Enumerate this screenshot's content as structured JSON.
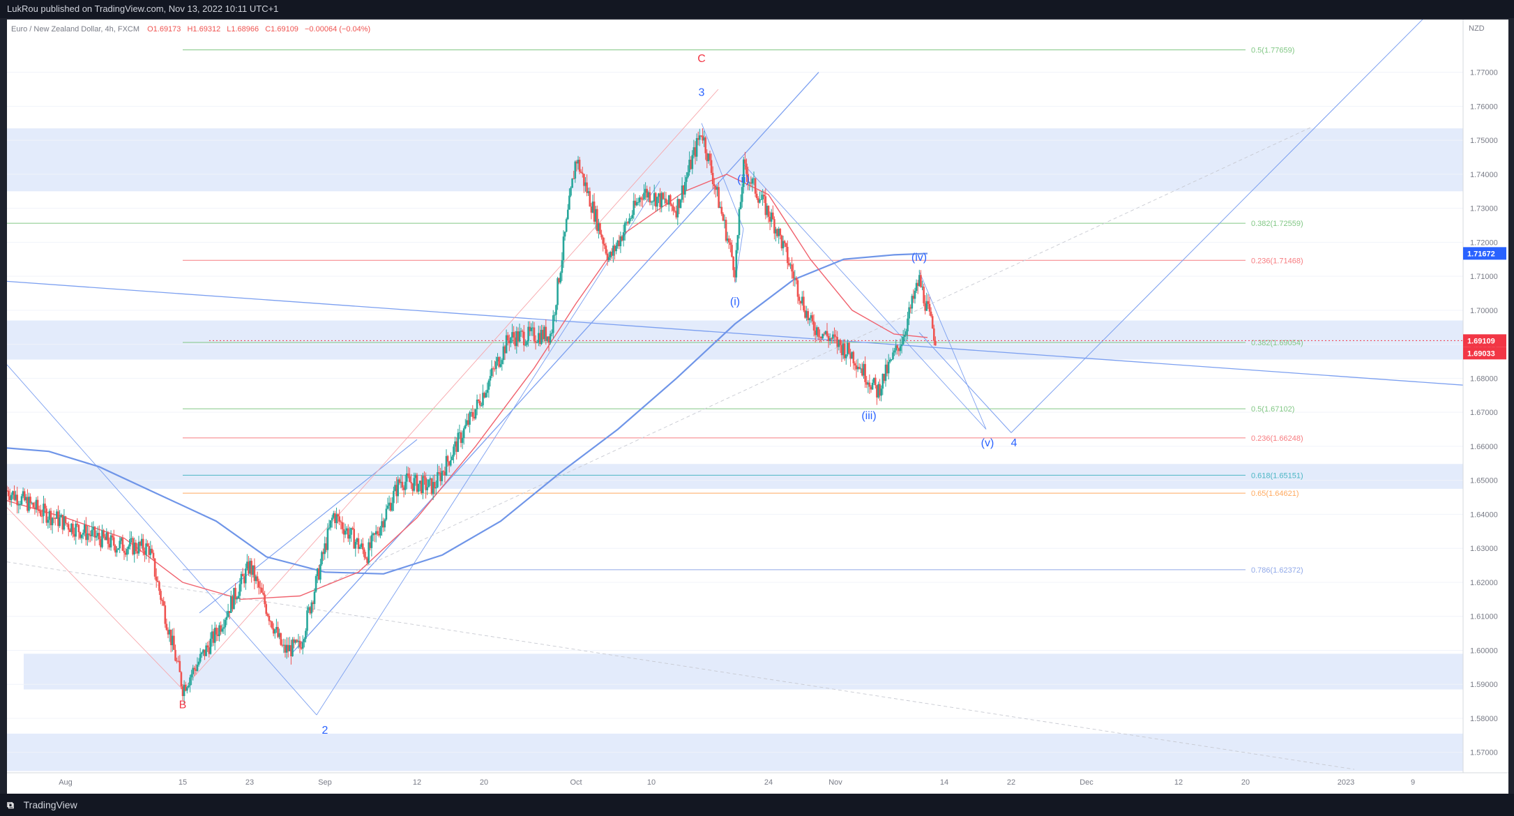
{
  "header": {
    "published_text": "LukRou published on TradingView.com, Nov 13, 2022 10:11 UTC+1"
  },
  "symbol": {
    "name": "Euro / New Zealand Dollar, 4h, FXCM",
    "open": "O1.69173",
    "high": "H1.69312",
    "low": "L1.68966",
    "close": "C1.69109",
    "change": "−0.00064 (−0.04%)"
  },
  "footer": {
    "brand": "TradingView",
    "logo_icon": "tradingview-logo-icon"
  },
  "colors": {
    "bull": "#26a69a",
    "bear": "#ef5350",
    "wave_blue": "#2962ff",
    "wave_red": "#f23645",
    "zone_fill": "#e3ebfb",
    "ema_red": "#f0616d",
    "ma_blue": "#6f95e8"
  },
  "chart_data": {
    "type": "candlestick",
    "currency": "NZD",
    "ylim": [
      1.564,
      1.7855
    ],
    "y_ticks": [
      "1.77000",
      "1.76000",
      "1.75000",
      "1.74000",
      "1.73000",
      "1.72000",
      "1.71000",
      "1.70000",
      "1.69000",
      "1.68000",
      "1.67000",
      "1.66000",
      "1.65000",
      "1.64000",
      "1.63000",
      "1.62000",
      "1.61000",
      "1.60000",
      "1.59000",
      "1.58000",
      "1.57000"
    ],
    "x_ticks": [
      "Aug",
      "15",
      "23",
      "Sep",
      "12",
      "20",
      "Oct",
      "10",
      "24",
      "Nov",
      "14",
      "22",
      "Dec",
      "12",
      "20",
      "2023",
      "9"
    ],
    "x_range": [
      "2022-07-25",
      "2023-01-15"
    ],
    "price_badges": [
      {
        "label": "1.71672",
        "value": 1.71672,
        "color": "#2962ff"
      },
      {
        "label": "1.69109",
        "value": 1.69109,
        "color": "#f23645"
      },
      {
        "label": "1.69033",
        "value": 1.69033,
        "color": "#f23645"
      }
    ],
    "wave_labels": [
      {
        "text": "C",
        "date": "2022-10-16",
        "price": 1.773,
        "color": "red"
      },
      {
        "text": "3",
        "date": "2022-10-16",
        "price": 1.763,
        "color": "blue"
      },
      {
        "text": "B",
        "date": "2022-08-15",
        "price": 1.583,
        "color": "red"
      },
      {
        "text": "2",
        "date": "2022-09-01",
        "price": 1.5755,
        "color": "blue"
      },
      {
        "text": "(ii)",
        "date": "2022-10-21",
        "price": 1.7375,
        "color": "blue"
      },
      {
        "text": "(i)",
        "date": "2022-10-20",
        "price": 1.7015,
        "color": "blue"
      },
      {
        "text": "(iii)",
        "date": "2022-11-05",
        "price": 1.668,
        "color": "blue"
      },
      {
        "text": "(iv)",
        "date": "2022-11-11",
        "price": 1.7145,
        "color": "blue"
      },
      {
        "text": "(v)",
        "date": "2022-11-20",
        "price": 1.66,
        "color": "blue"
      },
      {
        "text": "4",
        "date": "2022-11-22",
        "price": 1.66,
        "color": "blue"
      }
    ],
    "fib_levels": [
      {
        "label": "0.5(1.77659)",
        "value": 1.77659,
        "color": "#81c784",
        "from": "2022-08-15"
      },
      {
        "label": "0.382(1.72559)",
        "value": 1.72559,
        "color": "#81c784",
        "from": "2022-07-25"
      },
      {
        "label": "0.236(1.71468)",
        "value": 1.71468,
        "color": "#f77c80",
        "from": "2022-08-15"
      },
      {
        "label": "0.382(1.69054)",
        "value": 1.69054,
        "color": "#81c784",
        "from": "2022-08-15"
      },
      {
        "label": "0.5(1.67102)",
        "value": 1.67102,
        "color": "#81c784",
        "from": "2022-08-15"
      },
      {
        "label": "0.236(1.66248)",
        "value": 1.66248,
        "color": "#f77c80",
        "from": "2022-08-15"
      },
      {
        "label": "0.618(1.65151)",
        "value": 1.65151,
        "color": "#4bb6c4",
        "from": "2022-08-15"
      },
      {
        "label": "0.65(1.64621)",
        "value": 1.64621,
        "color": "#ffa95e",
        "from": "2022-08-15"
      },
      {
        "label": "0.786(1.62372)",
        "value": 1.62372,
        "color": "#90a8e8",
        "from": "2022-08-15"
      }
    ],
    "zones": [
      {
        "low": 1.735,
        "high": 1.7535
      },
      {
        "low": 1.6855,
        "high": 1.697
      },
      {
        "low": 1.6475,
        "high": 1.6548
      },
      {
        "low": 1.5885,
        "high": 1.599,
        "from": "2022-07-27"
      },
      {
        "low": 1.5645,
        "high": 1.5755
      }
    ],
    "trendlines": [
      {
        "color": "blue",
        "width": 1.3,
        "points": [
          [
            "2022-07-25",
            1.7085
          ],
          [
            "2023-01-15",
            1.678
          ]
        ]
      },
      {
        "color": "blue",
        "width": 1.3,
        "points": [
          [
            "2022-08-28",
            1.599
          ],
          [
            "2022-10-30",
            1.77
          ]
        ]
      },
      {
        "color": "blue",
        "width": 1.1,
        "points": [
          [
            "2022-08-17",
            1.611
          ],
          [
            "2022-09-12",
            1.662
          ]
        ]
      },
      {
        "color": "blue",
        "width": 0.9,
        "points": [
          [
            "2022-08-31",
            1.581
          ],
          [
            "2022-10-11",
            1.738
          ]
        ]
      },
      {
        "color": "blue",
        "width": 0.9,
        "points": [
          [
            "2022-07-25",
            1.684
          ],
          [
            "2022-08-31",
            1.581
          ]
        ]
      },
      {
        "color": "red",
        "width": 0.9,
        "points": [
          [
            "2022-07-25",
            1.642
          ],
          [
            "2022-08-15",
            1.5885
          ]
        ]
      },
      {
        "color": "red",
        "width": 0.9,
        "points": [
          [
            "2022-08-15",
            1.5885
          ],
          [
            "2022-10-18",
            1.765
          ]
        ]
      },
      {
        "color": "blue",
        "width": 0.9,
        "points": [
          [
            "2022-10-16",
            1.755
          ],
          [
            "2022-10-21",
            1.724
          ],
          [
            "2022-10-20",
            1.708
          ]
        ]
      },
      {
        "color": "blue",
        "width": 0.9,
        "points": [
          [
            "2022-10-21",
            1.743
          ],
          [
            "2022-11-19",
            1.665
          ]
        ]
      },
      {
        "color": "blue",
        "width": 0.9,
        "points": [
          [
            "2022-11-11",
            1.7115
          ],
          [
            "2022-11-19",
            1.665
          ]
        ]
      },
      {
        "color": "blue",
        "width": 1.0,
        "points": [
          [
            "2022-11-22",
            1.664
          ],
          [
            "2023-01-15",
            1.7975
          ]
        ]
      },
      {
        "color": "blue",
        "width": 1.0,
        "points": [
          [
            "2022-11-11",
            1.6935
          ],
          [
            "2022-11-22",
            1.664
          ]
        ]
      },
      {
        "color": "grey-dash",
        "width": 0.9,
        "points": [
          [
            "2022-07-25",
            1.626
          ],
          [
            "2023-01-02",
            1.565
          ]
        ]
      },
      {
        "color": "grey-dash",
        "width": 0.9,
        "points": [
          [
            "2022-08-31",
            1.618
          ],
          [
            "2022-12-28",
            1.754
          ]
        ]
      }
    ],
    "series": [
      {
        "name": "",
        "kind": "ma200",
        "points": [
          [
            "2022-07-25",
            1.6595
          ],
          [
            "2022-07-30",
            1.6585
          ],
          [
            "2022-08-05",
            1.654
          ],
          [
            "2022-08-12",
            1.646
          ],
          [
            "2022-08-19",
            1.638
          ],
          [
            "2022-08-25",
            1.6275
          ],
          [
            "2022-09-01",
            1.623
          ],
          [
            "2022-09-08",
            1.6225
          ],
          [
            "2022-09-15",
            1.628
          ],
          [
            "2022-09-22",
            1.638
          ],
          [
            "2022-09-29",
            1.652
          ],
          [
            "2022-10-06",
            1.665
          ],
          [
            "2022-10-13",
            1.68
          ],
          [
            "2022-10-20",
            1.696
          ],
          [
            "2022-10-27",
            1.709
          ],
          [
            "2022-11-02",
            1.715
          ],
          [
            "2022-11-08",
            1.7163
          ],
          [
            "2022-11-12",
            1.7167
          ]
        ]
      },
      {
        "name": "",
        "kind": "ema",
        "points": [
          [
            "2022-07-25",
            1.644
          ],
          [
            "2022-08-01",
            1.639
          ],
          [
            "2022-08-08",
            1.633
          ],
          [
            "2022-08-15",
            1.62
          ],
          [
            "2022-08-22",
            1.615
          ],
          [
            "2022-08-29",
            1.616
          ],
          [
            "2022-09-05",
            1.623
          ],
          [
            "2022-09-12",
            1.639
          ],
          [
            "2022-09-19",
            1.66
          ],
          [
            "2022-09-26",
            1.683
          ],
          [
            "2022-10-01",
            1.702
          ],
          [
            "2022-10-07",
            1.723
          ],
          [
            "2022-10-14",
            1.735
          ],
          [
            "2022-10-19",
            1.74
          ],
          [
            "2022-10-24",
            1.734
          ],
          [
            "2022-10-29",
            1.715
          ],
          [
            "2022-11-03",
            1.7
          ],
          [
            "2022-11-08",
            1.693
          ],
          [
            "2022-11-12",
            1.692
          ]
        ]
      },
      {
        "name": "",
        "kind": "price",
        "points": [
          [
            "2022-07-25",
            1.647
          ],
          [
            "2022-07-29",
            1.641
          ],
          [
            "2022-08-03",
            1.635
          ],
          [
            "2022-08-07",
            1.631
          ],
          [
            "2022-08-11",
            1.63
          ],
          [
            "2022-08-15",
            1.589
          ],
          [
            "2022-08-19",
            1.605
          ],
          [
            "2022-08-23",
            1.625
          ],
          [
            "2022-08-27",
            1.6
          ],
          [
            "2022-08-29",
            1.601
          ],
          [
            "2022-09-02",
            1.64
          ],
          [
            "2022-09-06",
            1.628
          ],
          [
            "2022-09-10",
            1.65
          ],
          [
            "2022-09-14",
            1.648
          ],
          [
            "2022-09-19",
            1.671
          ],
          [
            "2022-09-23",
            1.692
          ],
          [
            "2022-09-28",
            1.693
          ],
          [
            "2022-10-01",
            1.745
          ],
          [
            "2022-10-05",
            1.715
          ],
          [
            "2022-10-09",
            1.735
          ],
          [
            "2022-10-13",
            1.73
          ],
          [
            "2022-10-16",
            1.753
          ],
          [
            "2022-10-20",
            1.712
          ],
          [
            "2022-10-21",
            1.742
          ],
          [
            "2022-10-25",
            1.724
          ],
          [
            "2022-10-29",
            1.696
          ],
          [
            "2022-11-03",
            1.687
          ],
          [
            "2022-11-06",
            1.676
          ],
          [
            "2022-11-09",
            1.692
          ],
          [
            "2022-11-11",
            1.709
          ],
          [
            "2022-11-13",
            1.691
          ]
        ]
      }
    ]
  }
}
